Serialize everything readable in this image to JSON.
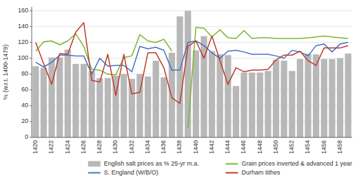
{
  "chart_data": {
    "type": "bar",
    "y_label": "% (w.r.t. 1400-1479)",
    "categories": [
      "1420",
      null,
      "1422",
      null,
      "1424",
      null,
      "1426",
      null,
      "1428",
      null,
      "1430",
      null,
      "1432",
      null,
      "1434",
      null,
      "1436",
      null,
      "1438",
      null,
      "1440",
      null,
      "1442",
      null,
      "1444",
      null,
      "1446",
      null,
      "1448",
      null,
      "1450",
      null,
      "1452",
      null,
      "1454",
      null,
      "1456",
      null,
      "1458",
      null
    ],
    "series": [
      {
        "name": "English salt prices as % 25-yr m.a.",
        "type": "bar",
        "color": "#b8b8b8",
        "values": [
          90,
          88,
          101,
          101,
          111,
          93,
          93,
          84,
          75,
          75,
          78,
          80,
          74,
          80,
          77,
          97,
          76,
          107,
          153,
          160,
          110,
          128,
          109,
          105,
          104,
          65,
          82,
          82,
          82,
          84,
          98,
          97,
          84,
          99,
          106,
          105,
          99,
          99,
          100,
          106
        ]
      },
      {
        "name": "Grain prices inverted & advanced 1 year",
        "type": "line",
        "color": "#7cb62e",
        "values": [
          109,
          121,
          122,
          117,
          122,
          131,
          115,
          86,
          85,
          80,
          79,
          101,
          103,
          130,
          122,
          120,
          124,
          109,
          null,
          12,
          139,
          138,
          127,
          136,
          126,
          125,
          135,
          125,
          126,
          126,
          125,
          125,
          125,
          125,
          126,
          127,
          128,
          127,
          126,
          125
        ]
      },
      {
        "name": "S. England (W/B/O)",
        "type": "line",
        "color": "#4472c4",
        "values": [
          95,
          89,
          95,
          104,
          104,
          103,
          103,
          80,
          100,
          90,
          91,
          91,
          83,
          115,
          112,
          114,
          110,
          85,
          85,
          120,
          122,
          116,
          107,
          100,
          109,
          110,
          108,
          105,
          105,
          105,
          103,
          100,
          110,
          108,
          103,
          116,
          118,
          108,
          118,
          120
        ]
      },
      {
        "name": "Durham tithes",
        "type": "line",
        "color": "#c0392b",
        "values": [
          120,
          93,
          67,
          106,
          105,
          133,
          145,
          72,
          70,
          105,
          53,
          105,
          55,
          57,
          107,
          107,
          88,
          50,
          43,
          115,
          122,
          100,
          128,
          97,
          67,
          88,
          83,
          85,
          85,
          86,
          98,
          104,
          104,
          109,
          97,
          91,
          113,
          113,
          113,
          116
        ]
      }
    ],
    "ylim": [
      0,
      165
    ],
    "yticks": [
      0,
      20,
      40,
      60,
      80,
      100,
      120,
      140,
      160
    ],
    "grid": true,
    "legend": "lower right"
  }
}
